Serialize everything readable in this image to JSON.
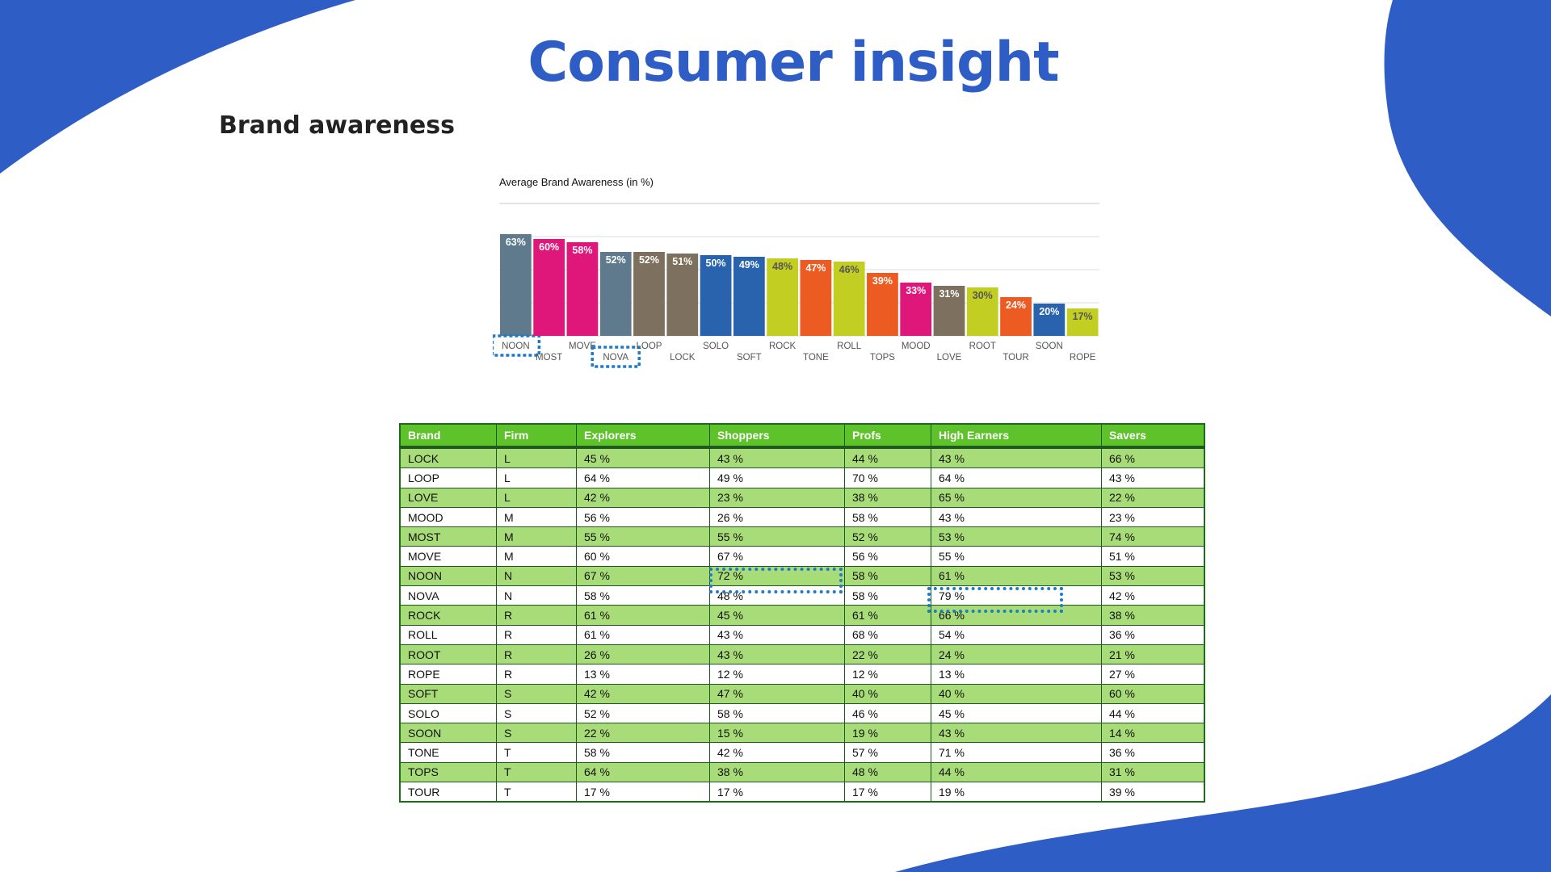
{
  "slide": {
    "title": "Consumer insight",
    "section_title": "Brand awareness"
  },
  "colors": {
    "brand_blue": "#2f5dc6",
    "table_header": "#5ec22b",
    "table_stripe": "#a8dc78",
    "highlight_box": "#1e7bc8"
  },
  "chart_data": {
    "type": "bar",
    "title": "Average Brand Awareness (in %)",
    "xlabel": "",
    "ylabel": "",
    "ylim": [
      0,
      70
    ],
    "grid": true,
    "categories": [
      "NOON",
      "MOST",
      "MOVE",
      "NOVA",
      "LOOP",
      "LOCK",
      "SOLO",
      "SOFT",
      "ROCK",
      "TONE",
      "ROLL",
      "TOPS",
      "MOOD",
      "LOVE",
      "ROOT",
      "TOUR",
      "SOON",
      "ROPE"
    ],
    "values": [
      63,
      60,
      58,
      52,
      52,
      51,
      50,
      49,
      48,
      47,
      46,
      39,
      33,
      31,
      30,
      24,
      20,
      17
    ],
    "labels": [
      "63%",
      "60%",
      "58%",
      "52%",
      "52%",
      "51%",
      "50%",
      "49%",
      "48%",
      "47%",
      "46%",
      "39%",
      "33%",
      "31%",
      "30%",
      "24%",
      "20%",
      "17%"
    ],
    "bar_colors": [
      "#5f7a8c",
      "#e0177a",
      "#e0177a",
      "#5f7a8c",
      "#7d705e",
      "#7d705e",
      "#2a63ad",
      "#2a63ad",
      "#c2cf22",
      "#ec5c22",
      "#c2cf22",
      "#ec5c22",
      "#e0177a",
      "#7d705e",
      "#c2cf22",
      "#ec5c22",
      "#2a63ad",
      "#c2cf22"
    ],
    "label_colors": [
      "#ffffff",
      "#ffffff",
      "#ffffff",
      "#ffffff",
      "#ffffff",
      "#ffffff",
      "#ffffff",
      "#ffffff",
      "#555555",
      "#ffffff",
      "#555555",
      "#ffffff",
      "#ffffff",
      "#ffffff",
      "#555555",
      "#ffffff",
      "#ffffff",
      "#555555"
    ],
    "highlighted_categories": [
      "NOON",
      "NOVA"
    ]
  },
  "table": {
    "columns": [
      "Brand",
      "Firm",
      "Explorers",
      "Shoppers",
      "Profs",
      "High Earners",
      "Savers"
    ],
    "rows": [
      [
        "LOCK",
        "L",
        "45 %",
        "43 %",
        "44 %",
        "43 %",
        "66 %"
      ],
      [
        "LOOP",
        "L",
        "64 %",
        "49 %",
        "70 %",
        "64 %",
        "43 %"
      ],
      [
        "LOVE",
        "L",
        "42 %",
        "23 %",
        "38 %",
        "65 %",
        "22 %"
      ],
      [
        "MOOD",
        "M",
        "56 %",
        "26 %",
        "58 %",
        "43 %",
        "23 %"
      ],
      [
        "MOST",
        "M",
        "55 %",
        "55 %",
        "52 %",
        "53 %",
        "74 %"
      ],
      [
        "MOVE",
        "M",
        "60 %",
        "67 %",
        "56 %",
        "55 %",
        "51 %"
      ],
      [
        "NOON",
        "N",
        "67 %",
        "72 %",
        "58 %",
        "61 %",
        "53 %"
      ],
      [
        "NOVA",
        "N",
        "58 %",
        "48 %",
        "58 %",
        "79 %",
        "42 %"
      ],
      [
        "ROCK",
        "R",
        "61 %",
        "45 %",
        "61 %",
        "66 %",
        "38 %"
      ],
      [
        "ROLL",
        "R",
        "61 %",
        "43 %",
        "68 %",
        "54 %",
        "36 %"
      ],
      [
        "ROOT",
        "R",
        "26 %",
        "43 %",
        "22 %",
        "24 %",
        "21 %"
      ],
      [
        "ROPE",
        "R",
        "13 %",
        "12 %",
        "12 %",
        "13 %",
        "27 %"
      ],
      [
        "SOFT",
        "S",
        "42 %",
        "47 %",
        "40 %",
        "40 %",
        "60 %"
      ],
      [
        "SOLO",
        "S",
        "52 %",
        "58 %",
        "46 %",
        "45 %",
        "44 %"
      ],
      [
        "SOON",
        "S",
        "22 %",
        "15 %",
        "19 %",
        "43 %",
        "14 %"
      ],
      [
        "TONE",
        "T",
        "58 %",
        "42 %",
        "57 %",
        "71 %",
        "36 %"
      ],
      [
        "TOPS",
        "T",
        "64 %",
        "38 %",
        "48 %",
        "44 %",
        "31 %"
      ],
      [
        "TOUR",
        "T",
        "17 %",
        "17 %",
        "17 %",
        "19 %",
        "39 %"
      ]
    ]
  }
}
